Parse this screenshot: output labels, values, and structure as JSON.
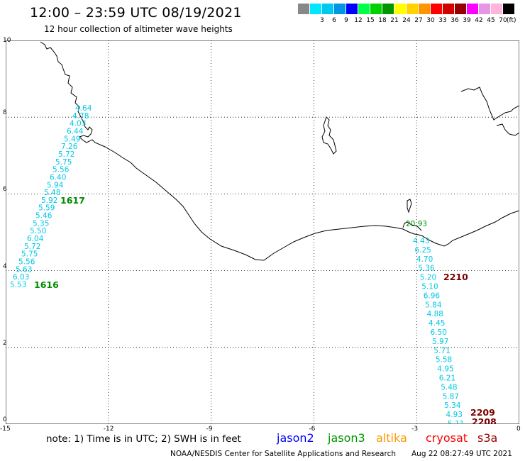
{
  "header": {
    "title": "12:00 – 23:59 UTC 08/19/2021",
    "subtitle": "12 hour collection of altimeter wave heights"
  },
  "color_scale": {
    "unit": "(ft)",
    "swatches": [
      {
        "color": "#888888",
        "label": ""
      },
      {
        "color": "#00e8ff",
        "label": "3"
      },
      {
        "color": "#00c8f0",
        "label": "6"
      },
      {
        "color": "#0096e8",
        "label": "9"
      },
      {
        "color": "#0000ff",
        "label": "12"
      },
      {
        "color": "#00ff48",
        "label": "15"
      },
      {
        "color": "#00d200",
        "label": "18"
      },
      {
        "color": "#009600",
        "label": "21"
      },
      {
        "color": "#ffff00",
        "label": "24"
      },
      {
        "color": "#ffd200",
        "label": "27"
      },
      {
        "color": "#ff9600",
        "label": "30"
      },
      {
        "color": "#ff0000",
        "label": "33"
      },
      {
        "color": "#d20000",
        "label": "36"
      },
      {
        "color": "#960000",
        "label": "39"
      },
      {
        "color": "#ff00ff",
        "label": "42"
      },
      {
        "color": "#e696e6",
        "label": "45"
      },
      {
        "color": "#ffb4dc",
        "label": "70"
      },
      {
        "color": "#000000",
        "label": ""
      }
    ]
  },
  "map": {
    "x_ticks": [
      "-15",
      "-12",
      "-9",
      "-6",
      "-3",
      "0"
    ],
    "y_ticks": [
      "0",
      "2",
      "4",
      "6",
      "8",
      "10"
    ],
    "lon_range": [
      -15,
      0
    ],
    "lat_range": [
      0,
      10
    ],
    "grid": "dotted",
    "track_color": "#00c8e6",
    "pass_labels": [
      {
        "text": "1617",
        "color": "#008c00"
      },
      {
        "text": "1616",
        "color": "#008c00"
      },
      {
        "text": "2210",
        "color": "#780000"
      },
      {
        "text": "2209",
        "color": "#780000"
      },
      {
        "text": "2208",
        "color": "#780000"
      }
    ],
    "west_track": [
      "4.64",
      "4.78",
      "4.03",
      "6.44",
      "5.49",
      "7.26",
      "5.72",
      "5.75",
      "5.56",
      "6.40",
      "5.94",
      "5.48",
      "5.92",
      "5.59",
      "5.46",
      "5.35",
      "5.50",
      "6.04",
      "5.72",
      "5.75",
      "5.56",
      "5.63",
      "6.03",
      "5.53"
    ],
    "east_track": [
      "20.93",
      "4.43",
      "6.25",
      "4.70",
      "5.36",
      "5.20",
      "5.10",
      "6.96",
      "5.84",
      "4.88",
      "4.45",
      "6.50",
      "5.97",
      "5.71",
      "5.58",
      "4.95",
      "6.21",
      "5.48",
      "5.87",
      "5.34",
      "4.93",
      "5.11"
    ]
  },
  "footer": {
    "note": "note: 1) Time is in UTC; 2) SWH is in feet",
    "satellites": [
      {
        "name": "jason2",
        "color": "#0000ff"
      },
      {
        "name": "jason3",
        "color": "#009600"
      },
      {
        "name": "altika",
        "color": "#ff9600"
      },
      {
        "name": "cryosat",
        "color": "#ff0000"
      },
      {
        "name": "s3a",
        "color": "#960000"
      }
    ],
    "credit": "NOAA/NESDIS Center for Satellite Applications and Research",
    "timestamp": "Aug 22 08:27:49 UTC 2021"
  }
}
